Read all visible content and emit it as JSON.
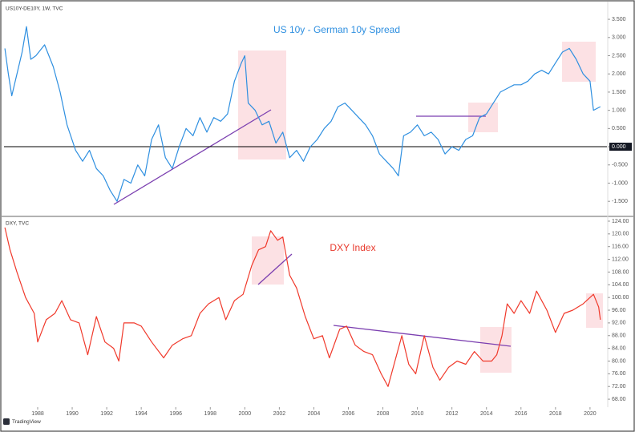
{
  "branding": "TradingView",
  "chart_data": [
    {
      "type": "line",
      "symbol": "US10Y-DE10Y, 1W, TVC",
      "title": "US 10y - German 10y Spread",
      "x": [
        1986.1,
        1986.3,
        1986.5,
        1986.9,
        1987.1,
        1987.35,
        1987.6,
        1987.9,
        1988.4,
        1988.9,
        1989.3,
        1989.7,
        1990.2,
        1990.6,
        1991.0,
        1991.4,
        1991.8,
        1992.2,
        1992.6,
        1993.0,
        1993.4,
        1993.8,
        1994.2,
        1994.6,
        1995.0,
        1995.4,
        1995.8,
        1996.2,
        1996.6,
        1997.0,
        1997.4,
        1997.8,
        1998.2,
        1998.6,
        1999.0,
        1999.4,
        1999.8,
        2000.0,
        2000.2,
        2000.6,
        2001.0,
        2001.4,
        2001.8,
        2002.2,
        2002.6,
        2003.0,
        2003.4,
        2003.8,
        2004.2,
        2004.6,
        2005.0,
        2005.4,
        2005.8,
        2006.2,
        2006.6,
        2007.0,
        2007.4,
        2007.8,
        2008.2,
        2008.6,
        2008.9,
        2009.2,
        2009.6,
        2010.0,
        2010.4,
        2010.8,
        2011.2,
        2011.6,
        2012.0,
        2012.4,
        2012.8,
        2013.2,
        2013.6,
        2014.0,
        2014.4,
        2014.8,
        2015.2,
        2015.6,
        2016.0,
        2016.4,
        2016.8,
        2017.2,
        2017.6,
        2018.0,
        2018.4,
        2018.8,
        2019.2,
        2019.6,
        2020.0,
        2020.2,
        2020.6
      ],
      "values": [
        2.7,
        2.0,
        1.4,
        2.2,
        2.6,
        3.3,
        2.4,
        2.5,
        2.8,
        2.2,
        1.5,
        0.6,
        -0.1,
        -0.4,
        -0.1,
        -0.6,
        -0.8,
        -1.2,
        -1.5,
        -0.9,
        -1.0,
        -0.5,
        -0.8,
        0.2,
        0.6,
        -0.3,
        -0.6,
        0.0,
        0.5,
        0.3,
        0.8,
        0.4,
        0.8,
        0.7,
        0.9,
        1.8,
        2.3,
        2.5,
        1.2,
        1.0,
        0.6,
        0.7,
        0.1,
        0.4,
        -0.3,
        -0.1,
        -0.4,
        0.0,
        0.2,
        0.5,
        0.7,
        1.1,
        1.2,
        1.0,
        0.8,
        0.6,
        0.3,
        -0.2,
        -0.4,
        -0.6,
        -0.8,
        0.3,
        0.4,
        0.6,
        0.3,
        0.4,
        0.2,
        -0.2,
        0.0,
        -0.1,
        0.2,
        0.3,
        0.8,
        0.9,
        1.2,
        1.5,
        1.6,
        1.7,
        1.7,
        1.8,
        2.0,
        2.1,
        2.0,
        2.3,
        2.6,
        2.7,
        2.4,
        2.0,
        1.8,
        1.0,
        1.1
      ],
      "color": "#2e8fe0",
      "baseline": 0,
      "xlim": [
        1986.05,
        2020.98
      ],
      "ylim": [
        -1.87,
        3.92
      ],
      "yticks": [
        {
          "value": 3.5,
          "label": "3.500"
        },
        {
          "value": 3,
          "label": "3.000"
        },
        {
          "value": 2.5,
          "label": "2.500"
        },
        {
          "value": 2,
          "label": "2.000"
        },
        {
          "value": 1.5,
          "label": "1.500"
        },
        {
          "value": 1,
          "label": "1.000"
        },
        {
          "value": 0.5,
          "label": "0.500"
        },
        {
          "value": 0,
          "label": "0.000"
        },
        {
          "value": -0.5,
          "label": "-0.500"
        },
        {
          "value": -1,
          "label": "-1.000"
        },
        {
          "value": -1.5,
          "label": "-1.500"
        }
      ]
    },
    {
      "type": "line",
      "symbol": "DXY, TVC",
      "title": "DXY Index",
      "x": [
        1986.1,
        1986.4,
        1986.8,
        1987.3,
        1987.8,
        1988.0,
        1988.5,
        1989.0,
        1989.4,
        1989.9,
        1990.4,
        1990.9,
        1991.4,
        1991.9,
        1992.4,
        1992.7,
        1993.0,
        1993.6,
        1994.0,
        1994.6,
        1995.3,
        1995.8,
        1996.4,
        1996.9,
        1997.4,
        1997.9,
        1998.5,
        1998.9,
        1999.4,
        1999.9,
        2000.4,
        2000.8,
        2001.2,
        2001.5,
        2001.9,
        2002.2,
        2002.6,
        2003.0,
        2003.5,
        2004.0,
        2004.5,
        2004.9,
        2005.5,
        2005.9,
        2006.4,
        2006.9,
        2007.4,
        2007.9,
        2008.3,
        2008.7,
        2009.1,
        2009.5,
        2009.9,
        2010.4,
        2010.9,
        2011.3,
        2011.8,
        2012.3,
        2012.8,
        2013.3,
        2013.8,
        2014.3,
        2014.6,
        2014.9,
        2015.2,
        2015.6,
        2016.0,
        2016.5,
        2016.9,
        2017.5,
        2018.0,
        2018.5,
        2019.0,
        2019.6,
        2020.2,
        2020.5,
        2020.6
      ],
      "values": [
        122,
        115,
        108,
        100,
        95,
        86,
        93,
        95,
        99,
        93,
        92,
        82,
        94,
        86,
        84,
        80,
        92,
        92,
        91,
        86,
        81,
        85,
        87,
        88,
        95,
        98,
        100,
        93,
        99,
        101,
        110,
        115,
        116,
        121,
        118,
        119,
        107,
        103,
        94,
        87,
        88,
        81,
        90,
        91,
        85,
        83,
        82,
        76,
        72,
        80,
        88,
        79,
        76,
        88,
        78,
        74,
        78,
        80,
        79,
        83,
        80,
        80,
        82,
        88,
        98,
        95,
        99,
        95,
        102,
        96,
        89,
        95,
        96,
        98,
        101,
        97,
        93
      ],
      "color": "#f0392b",
      "xlim": [
        1986.05,
        2020.98
      ],
      "ylim": [
        65.5,
        125
      ],
      "yticks": [
        {
          "value": 124,
          "label": "124.00"
        },
        {
          "value": 120,
          "label": "120.00"
        },
        {
          "value": 116,
          "label": "116.00"
        },
        {
          "value": 112,
          "label": "112.00"
        },
        {
          "value": 108,
          "label": "108.00"
        },
        {
          "value": 104,
          "label": "104.00"
        },
        {
          "value": 100,
          "label": "100.00"
        },
        {
          "value": 96,
          "label": "96.00"
        },
        {
          "value": 92,
          "label": "92.00"
        },
        {
          "value": 88,
          "label": "88.00"
        },
        {
          "value": 84,
          "label": "84.00"
        },
        {
          "value": 80,
          "label": "80.00"
        },
        {
          "value": 76,
          "label": "76.00"
        },
        {
          "value": 72,
          "label": "72.00"
        },
        {
          "value": 68,
          "label": "68.00"
        }
      ],
      "xticks": [
        1988,
        1990,
        1992,
        1994,
        1996,
        1998,
        2000,
        2002,
        2004,
        2006,
        2008,
        2010,
        2012,
        2014,
        2016,
        2018,
        2020
      ]
    }
  ]
}
